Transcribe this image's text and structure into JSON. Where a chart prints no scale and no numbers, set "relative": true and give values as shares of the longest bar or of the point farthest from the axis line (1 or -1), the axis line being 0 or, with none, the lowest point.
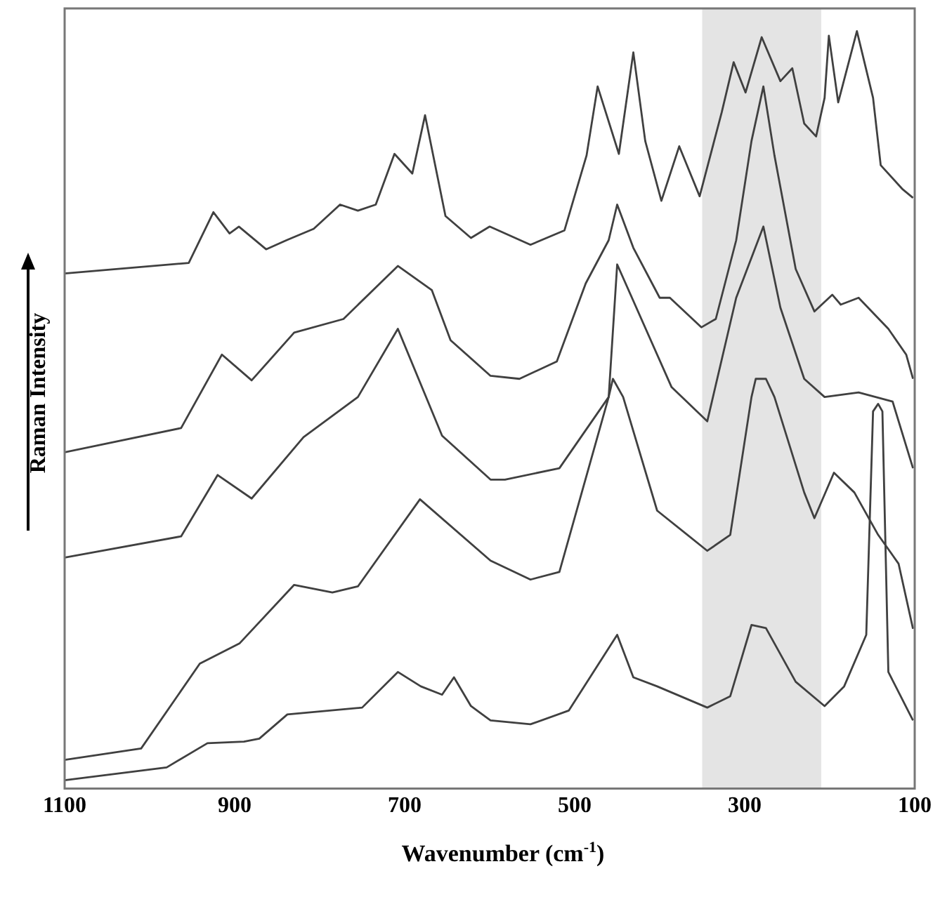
{
  "chart_data": {
    "type": "line",
    "xlabel": "Wavenumber (cm$^{-1}$)",
    "ylabel": "Raman Intensity",
    "relative": true,
    "xlim": [
      1100,
      100
    ],
    "xticks": [
      1100,
      900,
      700,
      500,
      300,
      100
    ],
    "grid": false,
    "legend": false,
    "marker": "none",
    "line_style": "solid",
    "bands": [
      {
        "axis": "x",
        "from": 350,
        "to": 210,
        "color": "#e4e4e4"
      }
    ],
    "series": [
      {
        "color": "#404040",
        "x": [
          1100,
          954,
          925,
          906,
          895,
          863,
          839,
          807,
          776,
          755,
          734,
          712,
          691,
          676,
          652,
          622,
          600,
          552,
          512,
          486,
          473,
          448,
          431,
          417,
          398,
          377,
          353,
          327,
          313,
          299,
          280,
          258,
          244,
          230,
          216,
          206,
          201,
          190,
          168,
          149,
          140,
          114,
          102
        ],
        "values": [
          0.68,
          0.694,
          0.761,
          0.733,
          0.742,
          0.712,
          0.724,
          0.739,
          0.771,
          0.763,
          0.771,
          0.838,
          0.812,
          0.889,
          0.756,
          0.727,
          0.742,
          0.718,
          0.737,
          0.836,
          0.927,
          0.838,
          0.972,
          0.855,
          0.776,
          0.848,
          0.782,
          0.893,
          0.959,
          0.919,
          0.992,
          0.934,
          0.951,
          0.878,
          0.861,
          0.912,
          0.994,
          0.906,
          1.0,
          0.912,
          0.823,
          0.791,
          0.78
        ]
      },
      {
        "color": "#404040",
        "x": [
          1100,
          963,
          915,
          880,
          830,
          772,
          708,
          668,
          646,
          599,
          565,
          521,
          487,
          460,
          450,
          431,
          400,
          388,
          351,
          334,
          310,
          292,
          278,
          265,
          240,
          218,
          197,
          187,
          166,
          131,
          110,
          102
        ],
        "values": [
          0.444,
          0.476,
          0.573,
          0.539,
          0.602,
          0.62,
          0.69,
          0.658,
          0.592,
          0.545,
          0.541,
          0.564,
          0.667,
          0.724,
          0.771,
          0.714,
          0.648,
          0.648,
          0.609,
          0.62,
          0.724,
          0.855,
          0.927,
          0.836,
          0.686,
          0.63,
          0.652,
          0.639,
          0.648,
          0.607,
          0.573,
          0.541
        ]
      },
      {
        "color": "#404040",
        "x": [
          1100,
          963,
          920,
          880,
          819,
          755,
          708,
          656,
          599,
          582,
          518,
          460,
          450,
          386,
          344,
          310,
          278,
          258,
          230,
          206,
          166,
          126,
          102
        ],
        "values": [
          0.305,
          0.333,
          0.414,
          0.383,
          0.464,
          0.517,
          0.607,
          0.466,
          0.408,
          0.408,
          0.423,
          0.517,
          0.692,
          0.53,
          0.485,
          0.648,
          0.742,
          0.635,
          0.541,
          0.517,
          0.523,
          0.511,
          0.423
        ]
      },
      {
        "color": "#404040",
        "x": [
          1100,
          1010,
          941,
          894,
          830,
          785,
          755,
          682,
          599,
          552,
          518,
          460,
          455,
          443,
          403,
          344,
          317,
          292,
          287,
          275,
          265,
          230,
          218,
          195,
          171,
          143,
          119,
          102
        ],
        "values": [
          0.038,
          0.053,
          0.165,
          0.192,
          0.269,
          0.259,
          0.267,
          0.382,
          0.301,
          0.276,
          0.286,
          0.517,
          0.541,
          0.517,
          0.367,
          0.314,
          0.335,
          0.517,
          0.541,
          0.541,
          0.517,
          0.391,
          0.357,
          0.417,
          0.391,
          0.335,
          0.297,
          0.211
        ]
      },
      {
        "color": "#404040",
        "x": [
          1100,
          980,
          932,
          889,
          871,
          838,
          750,
          708,
          681,
          656,
          642,
          622,
          599,
          552,
          507,
          450,
          431,
          403,
          344,
          317,
          292,
          275,
          240,
          206,
          183,
          157,
          149,
          143,
          138,
          131,
          102
        ],
        "values": [
          0.011,
          0.028,
          0.06,
          0.062,
          0.066,
          0.098,
          0.107,
          0.154,
          0.135,
          0.124,
          0.147,
          0.109,
          0.09,
          0.085,
          0.103,
          0.203,
          0.147,
          0.135,
          0.107,
          0.122,
          0.216,
          0.212,
          0.141,
          0.109,
          0.135,
          0.203,
          0.498,
          0.508,
          0.498,
          0.154,
          0.09
        ]
      }
    ]
  }
}
